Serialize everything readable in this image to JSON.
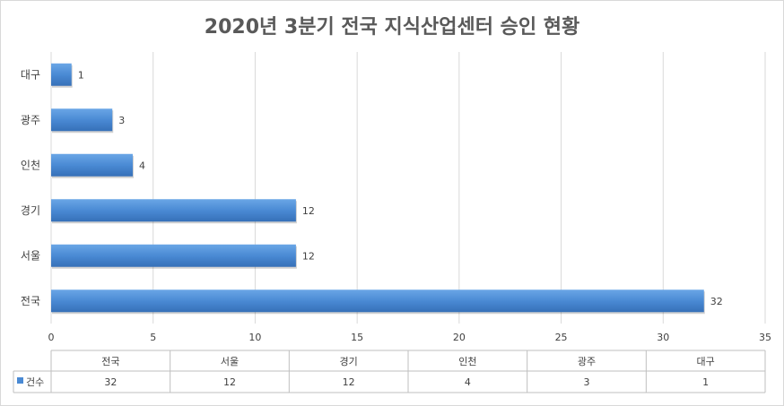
{
  "chart_data": {
    "type": "bar",
    "orientation": "horizontal",
    "title": "2020년 3분기 전국 지식산업센터 승인 현황",
    "categories": [
      "전국",
      "서울",
      "경기",
      "인천",
      "광주",
      "대구"
    ],
    "series": [
      {
        "name": "건수",
        "values": [
          32,
          12,
          12,
          4,
          3,
          1
        ]
      }
    ],
    "xlim": [
      0,
      35
    ],
    "x_ticks": [
      0,
      5,
      10,
      15,
      20,
      25,
      30,
      35
    ],
    "grid": true,
    "legend": "data-table-left",
    "data_table": true,
    "colors": {
      "bar": "#4a8ad4",
      "bar_light": "#6aa6e6",
      "bar_dark": "#3670b8"
    }
  }
}
